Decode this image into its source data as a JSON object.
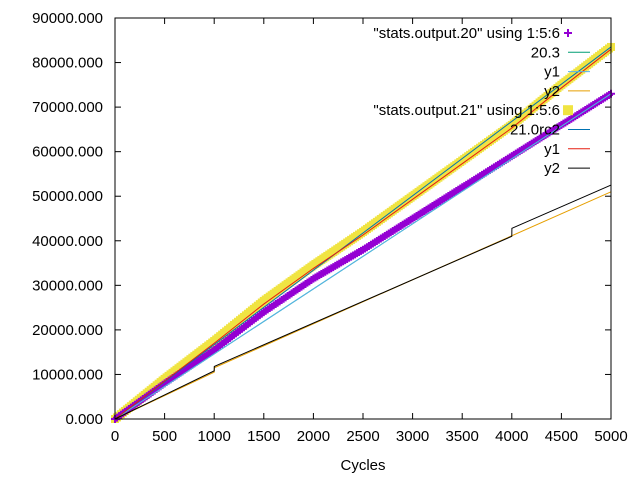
{
  "chart_data": {
    "type": "line",
    "title": "",
    "xlabel": "Cycles",
    "ylabel": "",
    "xlim": [
      0,
      5000
    ],
    "ylim": [
      0,
      90000
    ],
    "x_ticks": [
      0,
      500,
      1000,
      1500,
      2000,
      2500,
      3000,
      3500,
      4000,
      4500,
      5000
    ],
    "y_ticks": [
      0,
      10000,
      20000,
      30000,
      40000,
      50000,
      60000,
      70000,
      80000,
      90000
    ],
    "y_tick_labels": [
      "0.000",
      "10000.000",
      "20000.000",
      "30000.000",
      "40000.000",
      "50000.000",
      "60000.000",
      "70000.000",
      "80000.000",
      "90000.000"
    ],
    "grid": false,
    "legend_position": "top-right",
    "series": [
      {
        "name": "\"stats.output.20\" using 1:5:6",
        "style": "points-plus",
        "color": "#9400d3",
        "x": [
          0,
          500,
          1000,
          1500,
          2000,
          2500,
          3000,
          3500,
          4000,
          4500,
          5000
        ],
        "values": [
          0,
          8000,
          15500,
          24000,
          31500,
          38000,
          45000,
          52000,
          59000,
          66000,
          73000
        ]
      },
      {
        "name": "20.3",
        "style": "line",
        "color": "#009e73",
        "x": [
          0,
          5000
        ],
        "values": [
          0,
          73000
        ]
      },
      {
        "name": "y1",
        "style": "line",
        "color": "#56b4e9",
        "x": [
          0,
          5000
        ],
        "values": [
          0,
          73000
        ]
      },
      {
        "name": "y2",
        "style": "line",
        "color": "#e69f00",
        "x": [
          0,
          1000,
          1001,
          5000
        ],
        "values": [
          0,
          10500,
          11500,
          51000
        ]
      },
      {
        "name": "\"stats.output.21\" using 1:5:6",
        "style": "points-square",
        "color": "#f0e442",
        "x": [
          0,
          500,
          1000,
          1500,
          2000,
          2500,
          3000,
          3500,
          4000,
          4500,
          5000
        ],
        "values": [
          0,
          9000,
          17500,
          26500,
          34500,
          42000,
          50000,
          58000,
          66000,
          75000,
          83500
        ]
      },
      {
        "name": "21.0rc2",
        "style": "line",
        "color": "#0072b2",
        "x": [
          0,
          5000
        ],
        "values": [
          0,
          83500
        ]
      },
      {
        "name": "y1",
        "style": "line",
        "color": "#e51e10",
        "x": [
          0,
          500,
          1000,
          1500,
          2000,
          2500,
          3000,
          3500,
          4000,
          4500,
          5000
        ],
        "values": [
          0,
          8500,
          17000,
          25800,
          33800,
          41300,
          49300,
          57300,
          65300,
          74300,
          83000
        ]
      },
      {
        "name": "y2",
        "style": "line",
        "color": "#000000",
        "x": [
          0,
          1000,
          1001,
          4000,
          4001,
          5000
        ],
        "values": [
          0,
          10800,
          11800,
          41000,
          42800,
          52500
        ]
      }
    ]
  }
}
